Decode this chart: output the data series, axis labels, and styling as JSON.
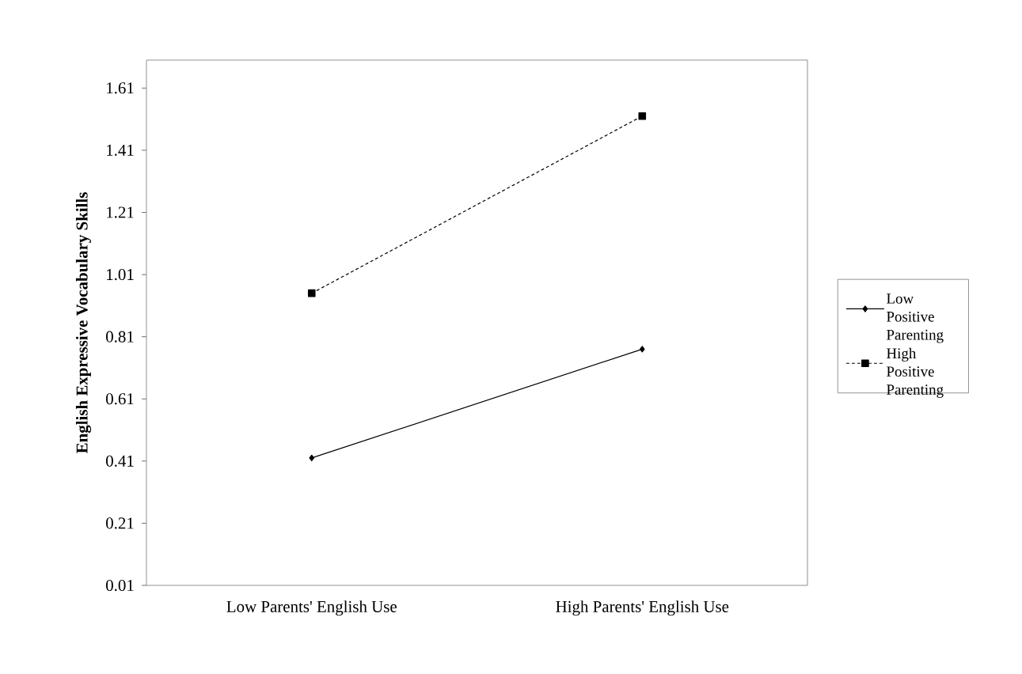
{
  "chart_data": {
    "type": "line",
    "ylabel": "English Expressive Vocabulary Skills",
    "categories": [
      "Low Parents' English Use",
      "High Parents' English Use"
    ],
    "ylim": [
      0.01,
      1.7
    ],
    "yticks": [
      0.01,
      0.21,
      0.41,
      0.61,
      0.81,
      1.01,
      1.21,
      1.41,
      1.61
    ],
    "legend": "right",
    "series": [
      {
        "name": "Low Positive Parenting",
        "color": "#000000",
        "values": [
          0.42,
          0.77
        ],
        "marker": "diamond",
        "line_style": "solid"
      },
      {
        "name": "High Positive Parenting",
        "color": "#000000",
        "values": [
          0.95,
          1.52
        ],
        "marker": "square",
        "line_style": "dashed"
      }
    ]
  }
}
